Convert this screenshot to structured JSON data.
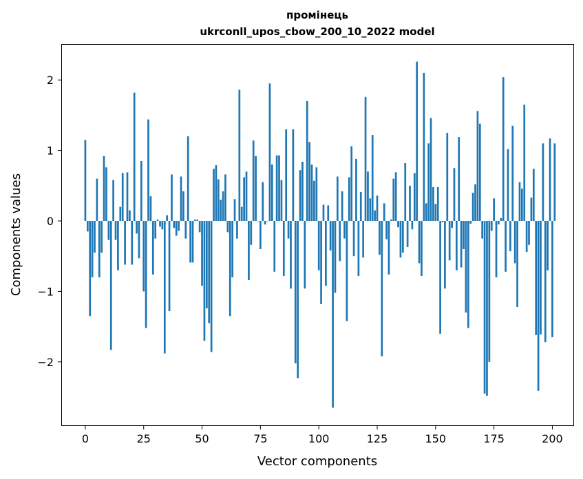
{
  "chart_data": {
    "type": "bar",
    "title": "промінець",
    "subtitle": "ukrconll_upos_cbow_200_10_2022 model",
    "xlabel": "Vector components",
    "ylabel": "Components values",
    "xlim": [
      -10,
      209
    ],
    "ylim": [
      -2.9,
      2.5
    ],
    "xticks": [
      0,
      25,
      50,
      75,
      100,
      125,
      150,
      175,
      200
    ],
    "yticks": [
      -2,
      -1,
      0,
      1,
      2
    ],
    "ytick_labels": [
      "−2",
      "−1",
      "0",
      "1",
      "2"
    ],
    "bar_color": "#1f77b4",
    "grid": false,
    "values": [
      1.15,
      -0.15,
      -1.35,
      -0.8,
      -0.45,
      0.6,
      -0.8,
      -0.45,
      0.92,
      0.76,
      -0.27,
      -1.83,
      0.58,
      -0.27,
      -0.7,
      0.2,
      0.68,
      -0.62,
      0.69,
      0.15,
      -0.62,
      1.82,
      -0.18,
      -0.53,
      0.85,
      -1.0,
      -1.52,
      1.44,
      0.35,
      -0.76,
      -0.25,
      0.02,
      -0.08,
      -0.12,
      -1.88,
      0.08,
      -1.28,
      0.66,
      -0.1,
      -0.21,
      -0.14,
      0.63,
      0.42,
      -0.25,
      1.2,
      -0.59,
      -0.59,
      0.02,
      0.02,
      -0.16,
      -0.92,
      -1.7,
      -1.24,
      -1.45,
      -1.86,
      0.74,
      0.79,
      0.59,
      0.3,
      0.42,
      0.66,
      -0.16,
      -1.35,
      -0.8,
      0.31,
      -0.25,
      1.86,
      0.2,
      0.62,
      0.7,
      -0.84,
      -0.34,
      1.14,
      0.92,
      0.0,
      -0.4,
      0.55,
      -0.05,
      0.0,
      1.95,
      0.8,
      -0.72,
      0.93,
      0.93,
      0.58,
      -0.78,
      1.3,
      -0.25,
      -0.96,
      1.3,
      -2.02,
      -2.23,
      0.72,
      0.84,
      -0.96,
      1.7,
      1.12,
      0.8,
      0.57,
      0.76,
      -0.7,
      -1.18,
      0.23,
      -0.92,
      0.22,
      -0.42,
      -2.65,
      -1.02,
      0.63,
      -0.57,
      0.42,
      -0.25,
      -1.42,
      0.62,
      1.06,
      -0.5,
      0.88,
      -0.78,
      0.41,
      -0.52,
      1.76,
      0.7,
      0.32,
      1.22,
      0.15,
      0.36,
      -0.48,
      -1.92,
      0.25,
      -0.26,
      -0.76,
      0.02,
      0.6,
      0.69,
      -0.09,
      -0.52,
      -0.45,
      0.82,
      -0.37,
      0.5,
      -0.12,
      0.68,
      2.26,
      -0.6,
      -0.78,
      2.1,
      0.25,
      1.1,
      1.46,
      0.48,
      0.24,
      0.48,
      -1.6,
      -0.02,
      -0.96,
      1.25,
      -0.56,
      -0.1,
      0.75,
      -0.7,
      1.19,
      -0.66,
      -0.4,
      -1.3,
      -1.52,
      -0.04,
      0.4,
      0.52,
      1.56,
      1.38,
      -0.25,
      -2.45,
      -2.48,
      -2.0,
      -0.14,
      0.32,
      -0.8,
      -0.05,
      0.04,
      2.04,
      -0.72,
      1.02,
      -0.43,
      1.35,
      -0.6,
      -1.22,
      0.55,
      0.46,
      1.65,
      -0.44,
      -0.34,
      0.33,
      0.74,
      -1.62,
      -2.41,
      -1.61,
      1.1,
      -1.72,
      -0.7,
      1.17,
      -1.65,
      1.1
    ]
  }
}
